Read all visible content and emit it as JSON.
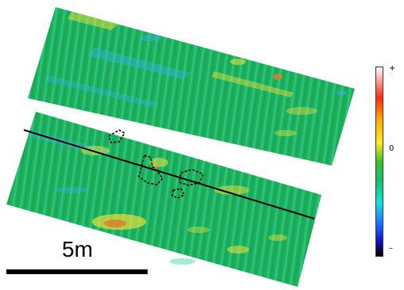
{
  "scale": {
    "label": "5m"
  },
  "colorbar": {
    "top_label": "+",
    "middle_label": "0",
    "bottom_label": "–"
  },
  "colors": {
    "survey_base": "#1faf5a",
    "stripe_light": "#2fd49a",
    "low_anomaly": "#33b6f2",
    "high_anomaly": "#f3e23a",
    "hot_anomaly": "#f07a2a",
    "survey_line": "#000000",
    "feature_outline": "#000000"
  }
}
